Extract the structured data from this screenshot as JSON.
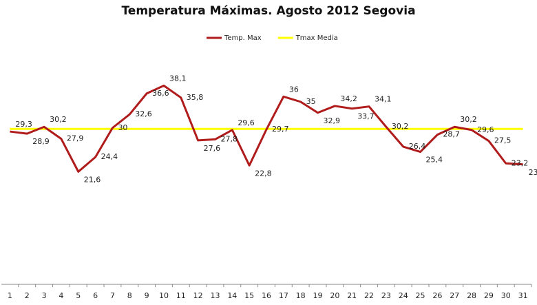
{
  "chart_data": {
    "type": "line",
    "title": "Temperatura Máximas. Agosto 2012 Segovia",
    "categories": [
      "1",
      "2",
      "3",
      "4",
      "5",
      "6",
      "7",
      "8",
      "9",
      "10",
      "11",
      "12",
      "13",
      "14",
      "15",
      "16",
      "17",
      "18",
      "19",
      "20",
      "21",
      "22",
      "23",
      "24",
      "25",
      "26",
      "27",
      "28",
      "29",
      "30",
      "31"
    ],
    "series": [
      {
        "name": "Temp. Max",
        "color": "#b01c1c",
        "values": [
          29.3,
          28.9,
          30.2,
          27.9,
          21.6,
          24.4,
          30,
          32.6,
          36.6,
          38.1,
          35.8,
          27.6,
          27.8,
          29.6,
          22.8,
          29.7,
          36,
          35,
          32.9,
          34.2,
          33.7,
          34.1,
          30.2,
          26.4,
          25.4,
          28.7,
          30.2,
          29.6,
          27.5,
          23.2,
          23
        ],
        "value_labels": [
          "29,3",
          "28,9",
          "30,2",
          "27,9",
          "21,6",
          "24,4",
          "30",
          "32,6",
          "36,6",
          "38,1",
          "35,8",
          "27,6",
          "27,8",
          "29,6",
          "22,8",
          "29,7",
          "36",
          "35",
          "32,9",
          "34,2",
          "33,7",
          "34,1",
          "30,2",
          "26,4",
          "25,4",
          "28,7",
          "30,2",
          "29,6",
          "27,5",
          "23,2",
          "23"
        ]
      },
      {
        "name": "Tmax Media",
        "color": "#ffff00",
        "values": [
          29.8,
          29.8,
          29.8,
          29.8,
          29.8,
          29.8,
          29.8,
          29.8,
          29.8,
          29.8,
          29.8,
          29.8,
          29.8,
          29.8,
          29.8,
          29.8,
          29.8,
          29.8,
          29.8,
          29.8,
          29.8,
          29.8,
          29.8,
          29.8,
          29.8,
          29.8,
          29.8,
          29.8,
          29.8,
          29.8,
          29.8
        ]
      }
    ],
    "ylim": [
      0,
      40
    ]
  }
}
